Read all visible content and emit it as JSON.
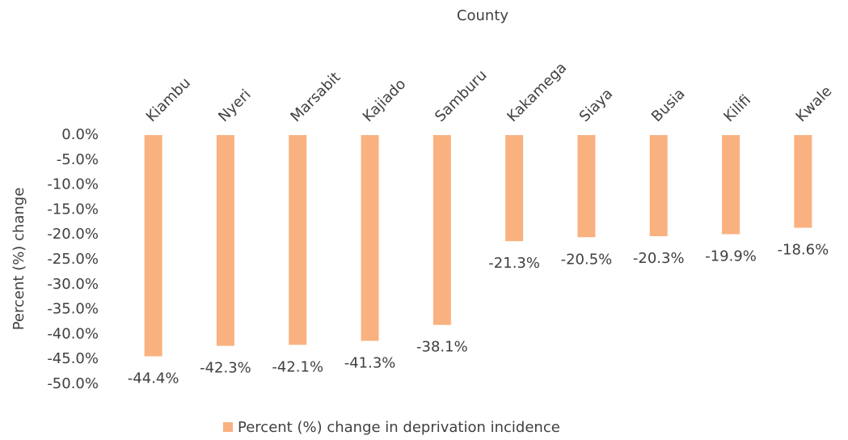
{
  "chart_data": {
    "type": "bar",
    "x_label": "County",
    "y_label": "Percent (%) change",
    "categories": [
      "Kiambu",
      "Nyeri",
      "Marsabit",
      "Kajiado",
      "Samburu",
      "Kakamega",
      "Siaya",
      "Busia",
      "Kilifi",
      "Kwale"
    ],
    "series": [
      {
        "name": "Percent (%) change in deprivation incidence",
        "color": "#f9b27f",
        "values": [
          -44.4,
          -42.3,
          -42.1,
          -41.3,
          -38.1,
          -21.3,
          -20.5,
          -20.3,
          -19.9,
          -18.6
        ],
        "value_labels": [
          "-44.4%",
          "-42.3%",
          "-42.1%",
          "-41.3%",
          "-38.1%",
          "-21.3%",
          "-20.5%",
          "-20.3%",
          "-19.9%",
          "-18.6%"
        ]
      }
    ],
    "ylim": [
      0,
      -50
    ],
    "yticks": [
      {
        "value": 0,
        "label": "0.0%"
      },
      {
        "value": -5,
        "label": "-5.0%"
      },
      {
        "value": -10,
        "label": "-10.0%"
      },
      {
        "value": -15,
        "label": "-15.0%"
      },
      {
        "value": -20,
        "label": "-20.0%"
      },
      {
        "value": -25,
        "label": "-25.0%"
      },
      {
        "value": -30,
        "label": "-30.0%"
      },
      {
        "value": -35,
        "label": "-35.0%"
      },
      {
        "value": -40,
        "label": "-40.0%"
      },
      {
        "value": -45,
        "label": "-45.0%"
      },
      {
        "value": -50,
        "label": "-50.0%"
      }
    ],
    "legend": "bottom"
  }
}
